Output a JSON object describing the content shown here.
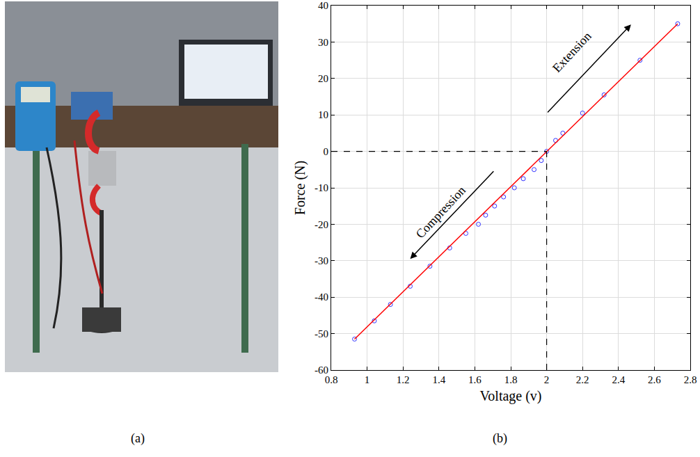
{
  "panel_labels": [
    "(a)",
    "(b)"
  ],
  "chart_data": {
    "type": "scatter",
    "x_label": "Voltage (v)",
    "y_label": "Force (N)",
    "xlim": [
      0.8,
      2.8
    ],
    "xticks": [
      0.8,
      1,
      1.2,
      1.4,
      1.6,
      1.8,
      2,
      2.2,
      2.4,
      2.6,
      2.8
    ],
    "ylim": [
      -60,
      40
    ],
    "yticks": [
      -60,
      -50,
      -40,
      -30,
      -20,
      -10,
      0,
      10,
      20,
      30,
      40
    ],
    "grid": true,
    "series": [
      {
        "type": "scatter",
        "color": "#3333ff",
        "marker": "circle-open",
        "x": [
          0.93,
          1.04,
          1.13,
          1.24,
          1.35,
          1.46,
          1.55,
          1.62,
          1.66,
          1.71,
          1.76,
          1.82,
          1.87,
          1.93,
          1.97,
          2.0,
          2.05,
          2.09,
          2.2,
          2.32,
          2.52,
          2.73
        ],
        "values": [
          -51.5,
          -46.5,
          -42,
          -37,
          -31.5,
          -26.5,
          -22.5,
          -20,
          -17.5,
          -15,
          -12.5,
          -10,
          -7.5,
          -5,
          -2.5,
          0,
          3,
          5,
          10.5,
          15.5,
          25,
          35
        ]
      },
      {
        "type": "line",
        "color": "#ff0000",
        "line_style": "solid",
        "x": [
          0.93,
          2.73
        ],
        "values": [
          -51.5,
          35
        ]
      }
    ],
    "reference": {
      "x": 2,
      "y": 0,
      "line_style": "dash"
    },
    "annotations": [
      {
        "text": "Extension",
        "x": 2.14,
        "y": 27.2,
        "arrow_from": [
          2.0,
          10.4
        ],
        "arrow_to": [
          2.47,
          34.8
        ]
      },
      {
        "text": "Compression",
        "x": 1.41,
        "y": -16.7,
        "arrow_from": [
          1.71,
          -5.2
        ],
        "arrow_to": [
          1.24,
          -29.5
        ]
      }
    ]
  }
}
